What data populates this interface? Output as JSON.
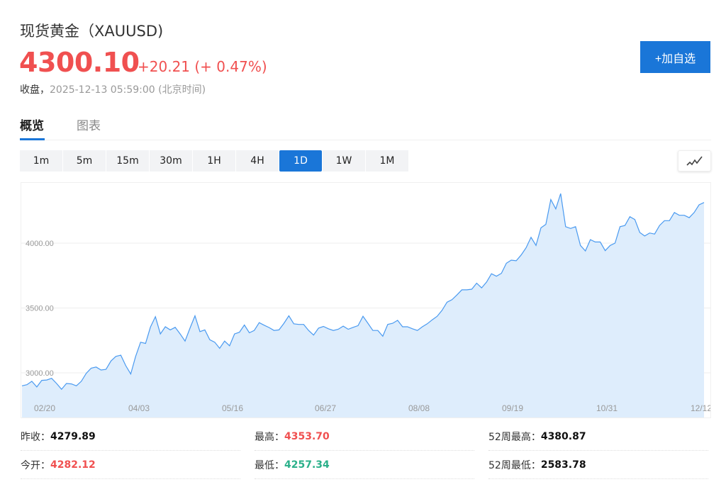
{
  "header": {
    "title": "现货黄金（XAUUSD)",
    "price": "4300.10",
    "change": "+20.21 (+ 0.47%)",
    "status_label": "收盘，",
    "timestamp": "2025-12-13 05:59:00 (北京时间)",
    "add_watchlist": "+加自选",
    "price_color": "#f05050"
  },
  "tabs": [
    {
      "label": "概览",
      "active": true
    },
    {
      "label": "图表",
      "active": false
    }
  ],
  "periods": [
    {
      "label": "1m"
    },
    {
      "label": "5m"
    },
    {
      "label": "15m"
    },
    {
      "label": "30m"
    },
    {
      "label": "1H"
    },
    {
      "label": "4H"
    },
    {
      "label": "1D",
      "active": true
    },
    {
      "label": "1W"
    },
    {
      "label": "1M"
    }
  ],
  "chart_type_icon": "line-chart-icon",
  "chart_data": {
    "type": "area",
    "line_color": "#4a9af0",
    "fill_color": "#deedfc",
    "y_ticks": [
      "3000.00",
      "3500.00",
      "4000.00"
    ],
    "y_tick_values": [
      3000,
      3500,
      4000
    ],
    "x_ticks": [
      "02/20",
      "04/03",
      "05/16",
      "06/27",
      "08/08",
      "09/19",
      "10/31",
      "12/12"
    ],
    "grid": true,
    "values": [
      2900,
      2909,
      2935,
      2891,
      2942,
      2945,
      2958,
      2918,
      2873,
      2918,
      2915,
      2900,
      2935,
      2996,
      3036,
      3045,
      3022,
      3027,
      3091,
      3127,
      3136,
      3055,
      2991,
      3127,
      3236,
      3227,
      3353,
      3433,
      3300,
      3355,
      3331,
      3351,
      3300,
      3245,
      3345,
      3440,
      3318,
      3331,
      3255,
      3236,
      3189,
      3245,
      3209,
      3300,
      3313,
      3369,
      3309,
      3327,
      3387,
      3367,
      3349,
      3327,
      3331,
      3382,
      3440,
      3378,
      3373,
      3373,
      3327,
      3291,
      3345,
      3358,
      3340,
      3327,
      3336,
      3360,
      3336,
      3351,
      3364,
      3436,
      3382,
      3327,
      3327,
      3282,
      3373,
      3382,
      3405,
      3355,
      3355,
      3340,
      3327,
      3355,
      3378,
      3409,
      3436,
      3482,
      3545,
      3564,
      3600,
      3640,
      3640,
      3645,
      3691,
      3655,
      3700,
      3764,
      3745,
      3767,
      3845,
      3869,
      3864,
      3909,
      3964,
      4045,
      3982,
      4118,
      4145,
      4336,
      4264,
      4382,
      4127,
      4113,
      4127,
      3982,
      3940,
      4027,
      4009,
      4009,
      3942,
      3982,
      4000,
      4127,
      4136,
      4204,
      4182,
      4082,
      4055,
      4078,
      4070,
      4136,
      4173,
      4173,
      4236,
      4215,
      4215,
      4196,
      4236,
      4295,
      4313
    ]
  },
  "stats": [
    {
      "label": "昨收：",
      "value": "4279.89",
      "tone": ""
    },
    {
      "label": "最高：",
      "value": "4353.70",
      "tone": "red"
    },
    {
      "label": "52周最高：",
      "value": "4380.87",
      "tone": ""
    },
    {
      "label": "今开：",
      "value": "4282.12",
      "tone": "red"
    },
    {
      "label": "最低：",
      "value": "4257.34",
      "tone": "green"
    },
    {
      "label": "52周最低：",
      "value": "2583.78",
      "tone": ""
    }
  ]
}
